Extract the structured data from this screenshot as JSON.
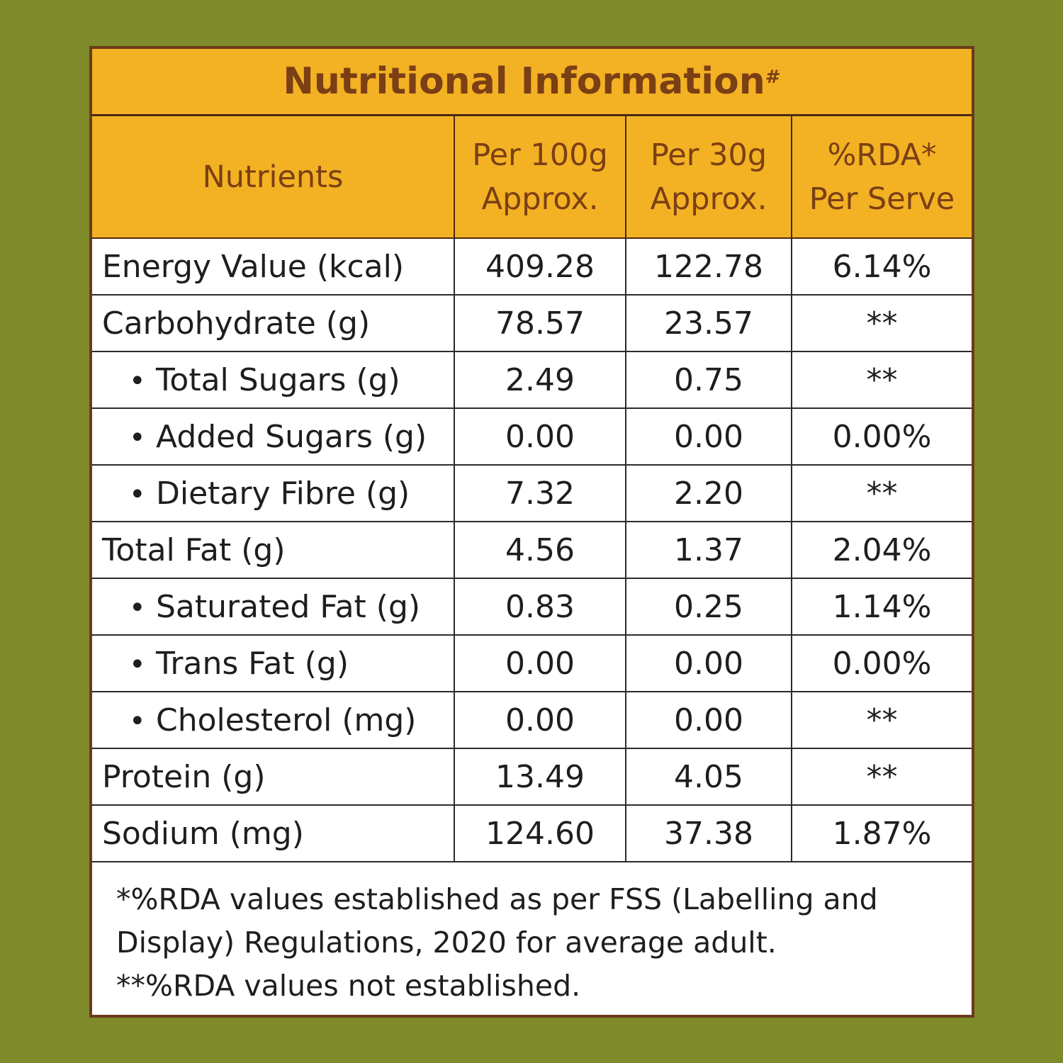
{
  "title": "Nutritional Information",
  "title_mark": "#",
  "headers": {
    "nutrients": "Nutrients",
    "per100_line1": "Per 100g",
    "per100_line2": "Approx.",
    "per30_line1": "Per 30g",
    "per30_line2": "Approx.",
    "rda_line1": "%RDA*",
    "rda_line2": "Per Serve"
  },
  "rows": [
    {
      "name": "Energy Value (kcal)",
      "per100": "409.28",
      "per30": "122.78",
      "rda": "6.14%"
    },
    {
      "name": "Carbohydrate (g)",
      "per100": "78.57",
      "per30": "23.57",
      "rda": "**"
    },
    {
      "name": "Total Sugars (g)",
      "per100": "2.49",
      "per30": "0.75",
      "rda": "**"
    },
    {
      "name": "Added Sugars (g)",
      "per100": "0.00",
      "per30": "0.00",
      "rda": "0.00%"
    },
    {
      "name": "Dietary Fibre (g)",
      "per100": "7.32",
      "per30": "2.20",
      "rda": "**"
    },
    {
      "name": "Total Fat (g)",
      "per100": "4.56",
      "per30": "1.37",
      "rda": "2.04%"
    },
    {
      "name": "Saturated Fat (g)",
      "per100": "0.83",
      "per30": "0.25",
      "rda": "1.14%"
    },
    {
      "name": "Trans Fat (g)",
      "per100": "0.00",
      "per30": "0.00",
      "rda": "0.00%"
    },
    {
      "name": "Cholesterol (mg)",
      "per100": "0.00",
      "per30": "0.00",
      "rda": "**"
    },
    {
      "name": "Protein (g)",
      "per100": "13.49",
      "per30": "4.05",
      "rda": "**"
    },
    {
      "name": "Sodium (mg)",
      "per100": "124.60",
      "per30": "37.38",
      "rda": "1.87%"
    }
  ],
  "bullet": "•",
  "footnotes": [
    "*%RDA values established as per FSS (Labelling and",
    "Display) Regulations, 2020 for average adult.",
    "**%RDA values not established."
  ],
  "colors": {
    "background": "#7f8a2a",
    "header_fill": "#f3b124",
    "header_text": "#7a3f14",
    "border": "#6b3a1c"
  }
}
